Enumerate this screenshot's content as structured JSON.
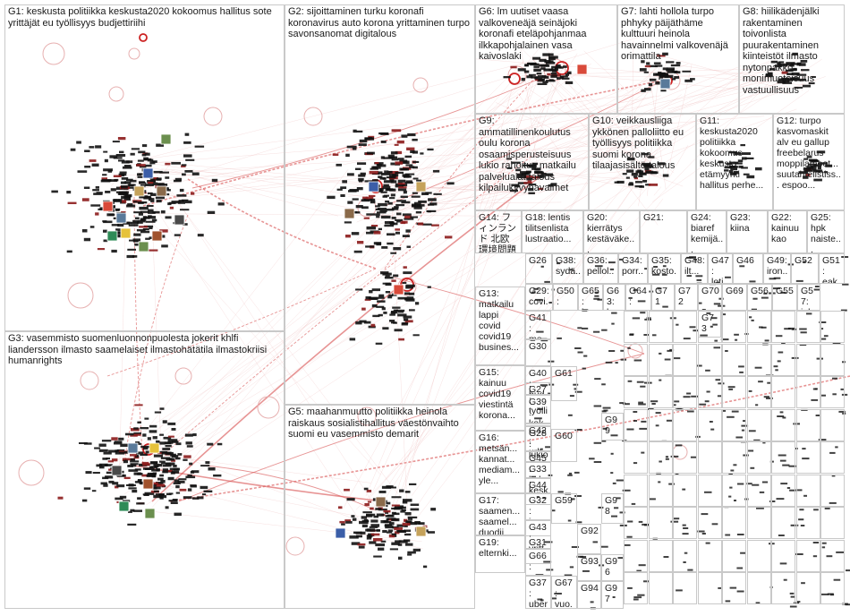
{
  "groups": [
    {
      "id": "G1",
      "label": "G1: keskusta politiikka keskusta2020 kokoomus hallitus sote yrittäjät eu työllisyys budjettiriihi"
    },
    {
      "id": "G2",
      "label": "G2: sijoittaminen turku koronafi koronavirus auto korona yrittaminen turpo savonsanomat digitalous"
    },
    {
      "id": "G3",
      "label": "G3: vasemmisto suomenluonnonpuolesta jokerit khlfi liandersson ilmasto saamelaiset ilmastohätätila ilmastokriisi humanrights"
    },
    {
      "id": "G5",
      "label": "G5: maahanmuutto politiikka heinola raiskaus sosialistihallitus väestönvaihto suomi eu vasemmisto demarit"
    },
    {
      "id": "G6",
      "label": "G6: lm uutiset vaasa valkoveneäjä seinäjoki koronafi eteläpohjanmaa ilkkapohjalainen vasa kaivoslaki"
    },
    {
      "id": "G7",
      "label": "G7: lahti hollola turpo phhyky päijäthäme kulttuuri heinola havainnelmi valkovenäjä orimattila"
    },
    {
      "id": "G8",
      "label": "G8: hiilikädenjälki rakentaminen toivonlista puurakentaminen kiinteistöt ilmasto nytonpakko monimuotoisuus vastuullisuus"
    },
    {
      "id": "G9",
      "label": "G9: ammatillinenkoulutus oulu korona osaamisperusteisuus lukio rahoitus matkailu palvelualat talous kilpailukyvynavaimet"
    },
    {
      "id": "G10",
      "label": "G10: veikkausliiga ykkönen palloliitto eu työllisyys politiikka suomi korona tilaajasisältö talous"
    },
    {
      "id": "G11",
      "label": "G11: keskusta2020 politiikka kokoomus keskusta etämyynti hallitus perhe..."
    },
    {
      "id": "G12",
      "label": "G12: turpo kasvomaskit alv eu gallup freebelarus moppilamoot... suutahtelistiss... espoo..."
    },
    {
      "id": "G13",
      "label": "G13: matkailu lappi covid covid19 busines..."
    },
    {
      "id": "G14",
      "label": "G14: フィンランド 北欧 環境問題 気候正義"
    },
    {
      "id": "G15",
      "label": "G15: kainuu covid19 viestintä korona..."
    },
    {
      "id": "G16",
      "label": "G16: metsän... kannat... mediam... yle..."
    },
    {
      "id": "G17",
      "label": "G17: saamen... saamel... duodji"
    },
    {
      "id": "G18",
      "label": "G18: lentis tilitsenlista lustraatio..."
    },
    {
      "id": "G19",
      "label": "G19: elternki..."
    },
    {
      "id": "G20",
      "label": "G20: kierrätys kestäväke..."
    },
    {
      "id": "G21",
      "label": "G21:"
    },
    {
      "id": "G22",
      "label": "G22: kainuu kao"
    },
    {
      "id": "G23",
      "label": "G23: kiina"
    },
    {
      "id": "G24",
      "label": "G24: biaref kemijä..."
    },
    {
      "id": "G25",
      "label": "G25: hpk naiste..."
    },
    {
      "id": "G26",
      "label": "G26"
    },
    {
      "id": "G27",
      "label": "G27: työlli... kilpä..."
    },
    {
      "id": "G28",
      "label": "G28: lukio etäo..."
    },
    {
      "id": "G29",
      "label": "G29: covi... biodi..."
    },
    {
      "id": "G30",
      "label": "G30"
    },
    {
      "id": "G31",
      "label": "G31"
    },
    {
      "id": "G32",
      "label": "G32: jour..."
    },
    {
      "id": "G33",
      "label": "G33: kesko"
    },
    {
      "id": "G34",
      "label": "G34: porr..."
    },
    {
      "id": "G35",
      "label": "G35: kosto..."
    },
    {
      "id": "G36",
      "label": "G36: pellol..."
    },
    {
      "id": "G37",
      "label": "G37: uber..."
    },
    {
      "id": "G38",
      "label": "G38: sydä..."
    },
    {
      "id": "G39",
      "label": "G39: kok..."
    },
    {
      "id": "G40",
      "label": "G40: bud..."
    },
    {
      "id": "G41",
      "label": "G41: me..."
    },
    {
      "id": "G42",
      "label": "G42: urh..."
    },
    {
      "id": "G43",
      "label": "G43: yritt..."
    },
    {
      "id": "G44",
      "label": "G44"
    },
    {
      "id": "G45",
      "label": "G45: kok..."
    },
    {
      "id": "G46",
      "label": "G46"
    },
    {
      "id": "G47",
      "label": "G47: lotj..."
    },
    {
      "id": "G48",
      "label": "G48: ilt..."
    },
    {
      "id": "G49",
      "label": "G49: iron..."
    },
    {
      "id": "G50",
      "label": "G50: rops"
    },
    {
      "id": "G51",
      "label": "G51: eak..."
    },
    {
      "id": "G52",
      "label": "G52"
    },
    {
      "id": "G55",
      "label": "G55"
    },
    {
      "id": "G56",
      "label": "G56"
    },
    {
      "id": "G57",
      "label": "G57: jok..."
    },
    {
      "id": "G59",
      "label": "G59"
    },
    {
      "id": "G60",
      "label": "G60"
    },
    {
      "id": "G61",
      "label": "G61"
    },
    {
      "id": "G63",
      "label": "G63: kun..."
    },
    {
      "id": "G64",
      "label": "G64: suo..."
    },
    {
      "id": "G65",
      "label": "G65: kor..."
    },
    {
      "id": "G66",
      "label": "G66: pon..."
    },
    {
      "id": "G67",
      "label": "G67: vuo..."
    },
    {
      "id": "G69",
      "label": "G69"
    },
    {
      "id": "G70",
      "label": "G70"
    },
    {
      "id": "G71",
      "label": "G71"
    },
    {
      "id": "G72",
      "label": "G72"
    },
    {
      "id": "G73",
      "label": "G73"
    },
    {
      "id": "G92",
      "label": "G92"
    },
    {
      "id": "G93",
      "label": "G93"
    },
    {
      "id": "G94",
      "label": "G94"
    },
    {
      "id": "G96",
      "label": "G96"
    },
    {
      "id": "G97",
      "label": "G97"
    },
    {
      "id": "G98",
      "label": "G98"
    },
    {
      "id": "G99",
      "label": "G99"
    }
  ],
  "colors": {
    "edge": "#d43c3c",
    "edge_light": "#e9a7a7",
    "node_bar": "#111111",
    "node_bar_accent": "#8c1b1b",
    "box_border": "#c9c9c9",
    "text": "#1a1a1a"
  },
  "icons": [
    "profile-thumbnail-icon"
  ]
}
